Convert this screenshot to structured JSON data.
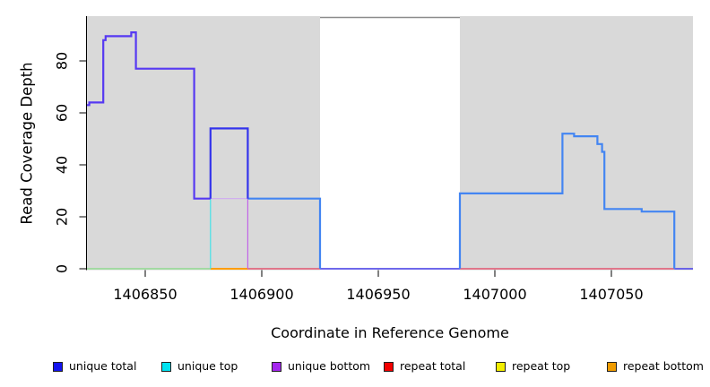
{
  "figure": {
    "xlabel": "Coordinate in Reference Genome",
    "ylabel": "Read Coverage Depth",
    "x_tick_labels": [
      "1406850",
      "1406900",
      "1406950",
      "1407000",
      "1407050"
    ],
    "y_tick_labels": [
      "0",
      "20",
      "40",
      "60",
      "80"
    ]
  },
  "chart_data": {
    "type": "line",
    "title": "",
    "xlabel": "Coordinate in Reference Genome",
    "ylabel": "Read Coverage Depth",
    "xlim": [
      1406825,
      1407085
    ],
    "ylim": [
      0,
      96
    ],
    "x_ticks": [
      1406850,
      1406900,
      1406950,
      1407000,
      1407050
    ],
    "y_ticks": [
      0,
      20,
      40,
      60,
      80
    ],
    "grid": false,
    "legend_position": "bottom",
    "plot_background_color": "#d9d9d9",
    "gap_border_color": "#8c8c8c",
    "covered_regions": [
      [
        1406825,
        1406925
      ],
      [
        1406985,
        1407085
      ]
    ],
    "uncovered_gap": [
      1406925,
      1406985
    ],
    "legend": [
      {
        "label": "unique total",
        "color": "#1414f0"
      },
      {
        "label": "unique top",
        "color": "#00e2f0"
      },
      {
        "label": "unique bottom",
        "color": "#a426ee"
      },
      {
        "label": "repeat total",
        "color": "#f20000"
      },
      {
        "label": "repeat top",
        "color": "#f2ee00"
      },
      {
        "label": "repeat bottom",
        "color": "#f09c00"
      }
    ],
    "series": [
      {
        "name": "unique total",
        "step_points": [
          [
            1406825,
            63
          ],
          [
            1406826,
            64
          ],
          [
            1406832,
            88
          ],
          [
            1406833,
            89
          ],
          [
            1406844,
            91
          ],
          [
            1406846,
            77
          ],
          [
            1406871,
            27
          ],
          [
            1406878,
            54
          ],
          [
            1406894,
            27
          ],
          [
            1406925,
            0
          ],
          [
            1406985,
            29
          ],
          [
            1407029,
            52
          ],
          [
            1407034,
            51
          ],
          [
            1407044,
            48
          ],
          [
            1407046,
            45
          ],
          [
            1407047,
            23
          ],
          [
            1407063,
            22
          ],
          [
            1407077,
            0
          ],
          [
            1407085,
            0
          ]
        ]
      },
      {
        "name": "unique top",
        "step_points": [
          [
            1406825,
            0
          ],
          [
            1406878,
            27
          ],
          [
            1406925,
            0
          ],
          [
            1406985,
            29
          ],
          [
            1407029,
            52
          ],
          [
            1407034,
            51
          ],
          [
            1407044,
            48
          ],
          [
            1407046,
            45
          ],
          [
            1407047,
            23
          ],
          [
            1407063,
            22
          ],
          [
            1407077,
            0
          ],
          [
            1407085,
            0
          ]
        ]
      },
      {
        "name": "unique bottom",
        "step_points": [
          [
            1406825,
            63
          ],
          [
            1406826,
            64
          ],
          [
            1406832,
            88
          ],
          [
            1406833,
            89
          ],
          [
            1406844,
            91
          ],
          [
            1406846,
            77
          ],
          [
            1406871,
            27
          ],
          [
            1406894,
            0
          ],
          [
            1407085,
            0
          ]
        ]
      },
      {
        "name": "repeat total",
        "step_points": [
          [
            1406825,
            0
          ],
          [
            1407085,
            0
          ]
        ]
      },
      {
        "name": "repeat top",
        "step_points": [
          [
            1406825,
            0
          ],
          [
            1407085,
            0
          ]
        ]
      },
      {
        "name": "repeat bottom",
        "step_points": [
          [
            1406825,
            0
          ],
          [
            1407085,
            0
          ]
        ]
      }
    ],
    "draw_segments": [
      {
        "name": "zero-line-unique-top-repeat-overlap",
        "color": "#8fd98f",
        "width": 1.5,
        "points": [
          [
            1406825,
            0
          ],
          [
            1406878,
            0
          ]
        ]
      },
      {
        "name": "zero-line-repeat-bottom",
        "color": "#ff9d00",
        "width": 2,
        "points": [
          [
            1406878,
            0
          ],
          [
            1406894,
            0
          ]
        ]
      },
      {
        "name": "zero-line-repeat-total-a",
        "color": "#e25670",
        "width": 1.5,
        "points": [
          [
            1406894,
            0
          ],
          [
            1406925,
            0
          ]
        ]
      },
      {
        "name": "zero-line-repeat-total-b",
        "color": "#e25670",
        "width": 1.5,
        "points": [
          [
            1406985,
            0
          ],
          [
            1407077,
            0
          ]
        ]
      },
      {
        "name": "unique-top-rise",
        "color": "#45e1e8",
        "width": 1.2,
        "points": [
          [
            1406878,
            0
          ],
          [
            1406878,
            27
          ]
        ]
      },
      {
        "name": "unique-bottom-under-box",
        "color": "#cfa9f0",
        "width": 1.2,
        "points": [
          [
            1406878,
            27
          ],
          [
            1406894,
            27
          ]
        ]
      },
      {
        "name": "unique-bottom-fall",
        "color": "#c263e8",
        "width": 1.2,
        "points": [
          [
            1406894,
            27
          ],
          [
            1406894,
            0
          ]
        ]
      },
      {
        "name": "unique-zero-across-gap",
        "color": "#5a52e8",
        "width": 1.8,
        "points": [
          [
            1406925,
            0
          ],
          [
            1406985,
            0
          ]
        ]
      },
      {
        "name": "unique-zero-right-end",
        "color": "#5a52e8",
        "width": 1.8,
        "points": [
          [
            1407077,
            0
          ],
          [
            1407085,
            0
          ]
        ]
      },
      {
        "name": "unique-total-bottom-overlap-left",
        "color": "#5639f2",
        "width": 2.2,
        "points": [
          [
            1406825,
            63
          ],
          [
            1406826,
            63
          ],
          [
            1406826,
            64
          ],
          [
            1406832,
            64
          ],
          [
            1406832,
            88
          ],
          [
            1406833,
            88
          ],
          [
            1406833,
            89.5
          ],
          [
            1406844,
            89.5
          ],
          [
            1406844,
            91
          ],
          [
            1406846,
            91
          ],
          [
            1406846,
            77
          ],
          [
            1406871,
            77
          ],
          [
            1406871,
            27
          ],
          [
            1406878,
            27
          ]
        ]
      },
      {
        "name": "unique-total-top-overlap-mid",
        "color": "#4385f2",
        "width": 2.2,
        "points": [
          [
            1406894,
            27
          ],
          [
            1406925,
            27
          ],
          [
            1406925,
            0
          ]
        ]
      },
      {
        "name": "unique-total-top-overlap-right",
        "color": "#4385f2",
        "width": 2.2,
        "points": [
          [
            1406985,
            0
          ],
          [
            1406985,
            29
          ],
          [
            1407029,
            29
          ],
          [
            1407029,
            52
          ],
          [
            1407034,
            52
          ],
          [
            1407034,
            51
          ],
          [
            1407044,
            51
          ],
          [
            1407044,
            48
          ],
          [
            1407046,
            48
          ],
          [
            1407046,
            45
          ],
          [
            1407047,
            45
          ],
          [
            1407047,
            23
          ],
          [
            1407063,
            23
          ],
          [
            1407063,
            22
          ],
          [
            1407077,
            22
          ],
          [
            1407077,
            0
          ]
        ]
      },
      {
        "name": "unique-total-box",
        "color": "#3434ec",
        "width": 2.2,
        "points": [
          [
            1406878,
            27
          ],
          [
            1406878,
            54
          ],
          [
            1406894,
            54
          ],
          [
            1406894,
            27
          ]
        ]
      }
    ]
  }
}
